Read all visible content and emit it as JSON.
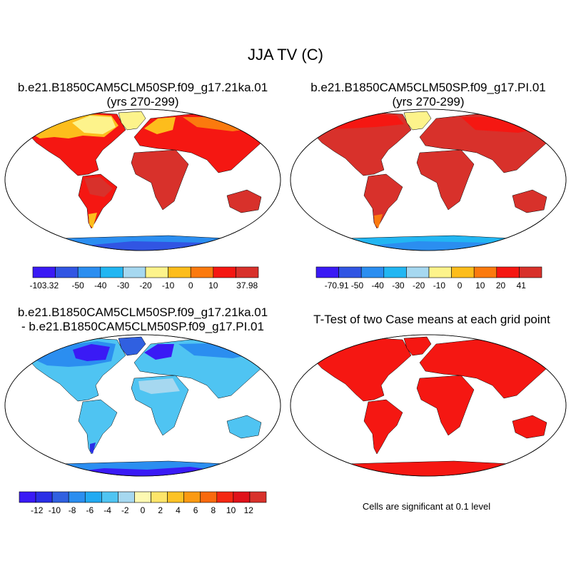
{
  "figure": {
    "title": "JJA TV (C)"
  },
  "panels": [
    {
      "id": "case1",
      "title_line1": "b.e21.B1850CAM5CLM50SP.f09_g17.21ka.01",
      "title_line2": "(yrs 270-299)",
      "colorbar": {
        "colors": [
          "#3a1af5",
          "#3155e3",
          "#2b8ef0",
          "#22b6f2",
          "#a6d8f0",
          "#fdf38b",
          "#fdbd1c",
          "#fb7a0e",
          "#f51712",
          "#d8312b"
        ],
        "labels": [
          "-103.32",
          "-50",
          "-40",
          "-30",
          "-20",
          "-10",
          "0",
          "10",
          "37.98"
        ]
      }
    },
    {
      "id": "case2",
      "title_line1": "b.e21.B1850CAM5CLM50SP.f09_g17.PI.01",
      "title_line2": "(yrs 270-299)",
      "colorbar": {
        "colors": [
          "#3a1af5",
          "#3155e3",
          "#2b8ef0",
          "#22b6f2",
          "#a6d8f0",
          "#fdf38b",
          "#fdbd1c",
          "#fb7a0e",
          "#f51712",
          "#d8312b"
        ],
        "labels": [
          "-70.91",
          "-50",
          "-40",
          "-30",
          "-20",
          "-10",
          "0",
          "10",
          "20",
          "41"
        ]
      }
    },
    {
      "id": "difference",
      "title_line1": "b.e21.B1850CAM5CLM50SP.f09_g17.21ka.01",
      "title_line2": "- b.e21.B1850CAM5CLM50SP.f09_g17.PI.01",
      "colorbar": {
        "colors": [
          "#3a1af5",
          "#2a2ee6",
          "#3060e0",
          "#2b8ef0",
          "#22aaf2",
          "#4fc4f2",
          "#a6d8f0",
          "#fdf9b2",
          "#fde56a",
          "#fdc326",
          "#fb9a12",
          "#f96a0e",
          "#f52712",
          "#e0121a",
          "#d8312b"
        ],
        "labels": [
          "-12",
          "-10",
          "-8",
          "-6",
          "-4",
          "-2",
          "0",
          "2",
          "4",
          "6",
          "8",
          "10",
          "12"
        ]
      }
    },
    {
      "id": "ttest",
      "title_line1": "T-Test of two Case means at each grid point",
      "note": "Cells are significant at 0.1 level"
    }
  ]
}
